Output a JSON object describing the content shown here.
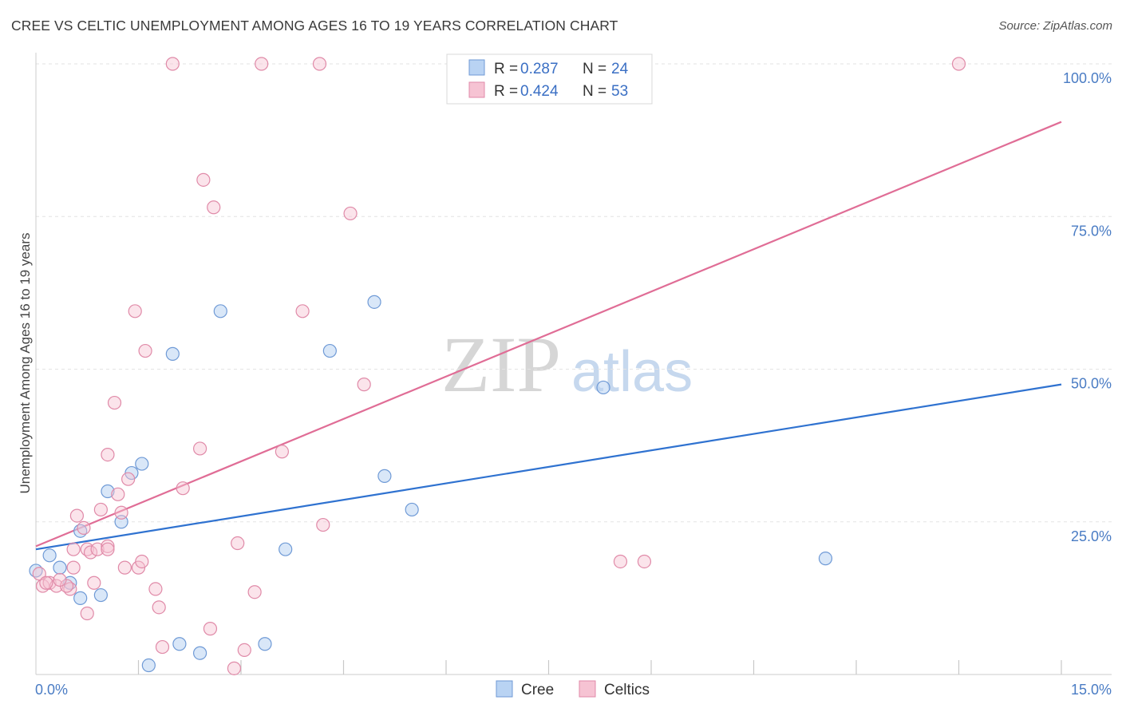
{
  "title": "CREE VS CELTIC UNEMPLOYMENT AMONG AGES 16 TO 19 YEARS CORRELATION CHART",
  "source": "Source: ZipAtlas.com",
  "watermark": {
    "zip": "ZIP",
    "atlas": "atlas"
  },
  "colors": {
    "cree": "#4a86d8",
    "cree_fill": "#b9d3f3",
    "celtics": "#e07097",
    "celtics_fill": "#f6c3d3",
    "axis_text": "#4a7cc4"
  },
  "chart_data": {
    "type": "scatter",
    "title": "CREE VS CELTIC UNEMPLOYMENT AMONG AGES 16 TO 19 YEARS CORRELATION CHART",
    "xlabel": "",
    "ylabel": "Unemployment Among Ages 16 to 19 years",
    "xlim": [
      0,
      15
    ],
    "ylim": [
      0,
      100
    ],
    "x_tick_labels": [
      "0.0%",
      "15.0%"
    ],
    "y_ticks": [
      25,
      50,
      75,
      100
    ],
    "y_tick_labels": [
      "25.0%",
      "50.0%",
      "75.0%",
      "100.0%"
    ],
    "legend": {
      "rows": [
        {
          "r_label": "R = ",
          "r_value": "0.287",
          "n_label": "N = ",
          "n_value": "24"
        },
        {
          "r_label": "R = ",
          "r_value": "0.424",
          "n_label": "N = ",
          "n_value": "53"
        }
      ]
    },
    "bottom_legend": [
      "Cree",
      "Celtics"
    ],
    "series": [
      {
        "name": "Cree",
        "trend": {
          "x0": 0,
          "y0": 20.5,
          "x1": 15,
          "y1": 47.5
        },
        "points": [
          [
            0.0,
            17.0
          ],
          [
            0.2,
            19.5
          ],
          [
            0.35,
            17.5
          ],
          [
            0.65,
            12.5
          ],
          [
            0.95,
            13.0
          ],
          [
            0.65,
            23.5
          ],
          [
            1.05,
            30.0
          ],
          [
            1.25,
            25.0
          ],
          [
            1.4,
            33.0
          ],
          [
            1.55,
            34.5
          ],
          [
            2.0,
            52.5
          ],
          [
            2.7,
            59.5
          ],
          [
            1.65,
            1.5
          ],
          [
            2.1,
            5.0
          ],
          [
            2.4,
            3.5
          ],
          [
            3.35,
            5.0
          ],
          [
            3.65,
            20.5
          ],
          [
            4.3,
            53.0
          ],
          [
            4.95,
            61.0
          ],
          [
            5.1,
            32.5
          ],
          [
            5.5,
            27.0
          ],
          [
            8.3,
            47.0
          ],
          [
            11.55,
            19.0
          ],
          [
            0.5,
            15.0
          ]
        ]
      },
      {
        "name": "Celtics",
        "trend": {
          "x0": 0,
          "y0": 21.0,
          "x1": 15,
          "y1": 90.5
        },
        "points": [
          [
            0.05,
            16.5
          ],
          [
            0.1,
            14.5
          ],
          [
            0.2,
            15.0
          ],
          [
            0.3,
            14.5
          ],
          [
            0.5,
            14.0
          ],
          [
            0.45,
            14.5
          ],
          [
            0.6,
            26.0
          ],
          [
            0.7,
            24.0
          ],
          [
            0.75,
            20.5
          ],
          [
            0.8,
            20.0
          ],
          [
            0.55,
            20.5
          ],
          [
            0.55,
            17.5
          ],
          [
            0.75,
            10.0
          ],
          [
            0.85,
            15.0
          ],
          [
            0.9,
            20.5
          ],
          [
            0.95,
            27.0
          ],
          [
            1.05,
            21.0
          ],
          [
            1.05,
            36.0
          ],
          [
            1.15,
            44.5
          ],
          [
            1.2,
            29.5
          ],
          [
            1.25,
            26.5
          ],
          [
            1.3,
            17.5
          ],
          [
            1.35,
            32.0
          ],
          [
            1.45,
            59.5
          ],
          [
            1.5,
            17.5
          ],
          [
            1.55,
            18.5
          ],
          [
            1.6,
            53.0
          ],
          [
            1.75,
            14.0
          ],
          [
            1.8,
            11.0
          ],
          [
            1.85,
            4.5
          ],
          [
            2.0,
            100.0
          ],
          [
            2.15,
            30.5
          ],
          [
            2.4,
            37.0
          ],
          [
            2.45,
            81.0
          ],
          [
            2.55,
            7.5
          ],
          [
            2.6,
            76.5
          ],
          [
            2.9,
            1.0
          ],
          [
            2.95,
            21.5
          ],
          [
            3.05,
            4.0
          ],
          [
            3.2,
            13.5
          ],
          [
            3.3,
            100.0
          ],
          [
            3.6,
            36.5
          ],
          [
            3.9,
            59.5
          ],
          [
            4.15,
            100.0
          ],
          [
            4.2,
            24.5
          ],
          [
            4.6,
            75.5
          ],
          [
            4.8,
            47.5
          ],
          [
            8.55,
            18.5
          ],
          [
            8.9,
            18.5
          ],
          [
            13.5,
            100.0
          ],
          [
            0.35,
            15.5
          ],
          [
            0.15,
            15.0
          ],
          [
            1.05,
            20.5
          ]
        ]
      }
    ]
  }
}
